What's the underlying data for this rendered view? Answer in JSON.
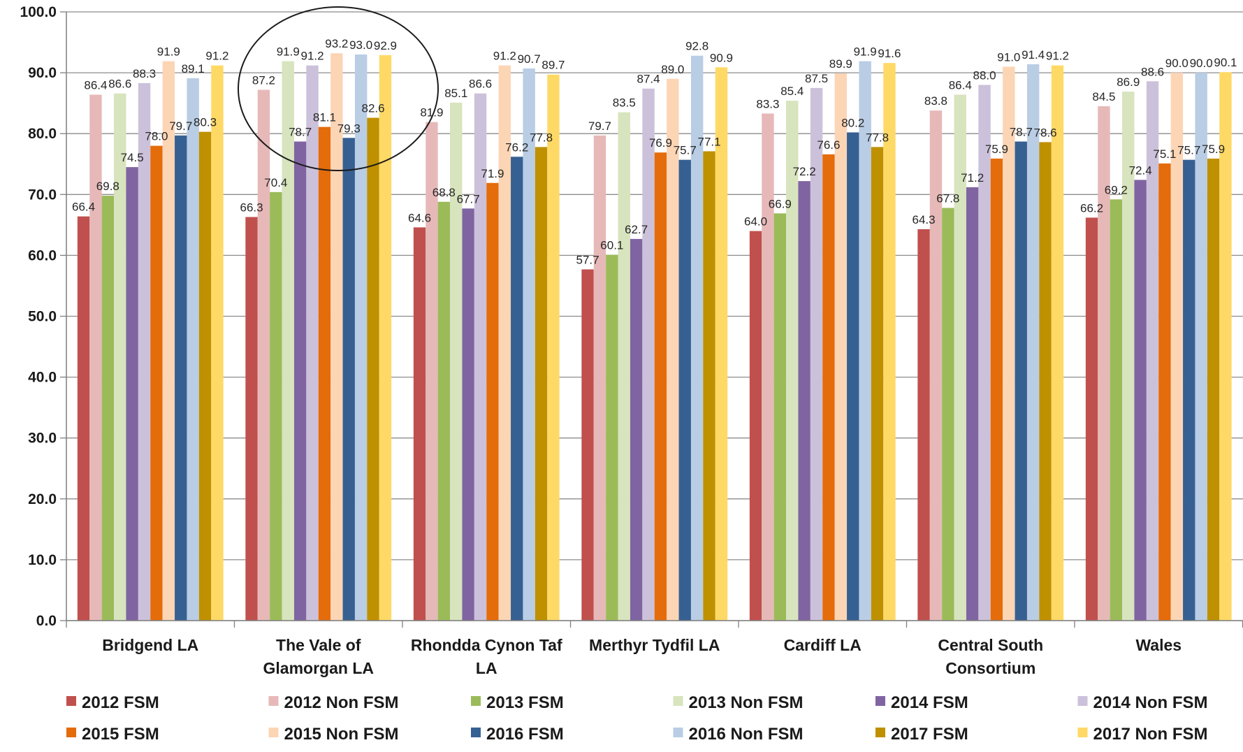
{
  "chart_data": {
    "type": "bar",
    "title": "",
    "xlabel": "",
    "ylabel": "",
    "ylim": [
      0,
      100
    ],
    "yticks": [
      "0.0",
      "10.0",
      "20.0",
      "30.0",
      "40.0",
      "50.0",
      "60.0",
      "70.0",
      "80.0",
      "90.0",
      "100.0"
    ],
    "grid": true,
    "legend_position": "bottom",
    "categories": [
      [
        "Bridgend LA"
      ],
      [
        "The Vale of",
        "Glamorgan LA"
      ],
      [
        "Rhondda Cynon Taf",
        "LA"
      ],
      [
        "Merthyr Tydfil LA"
      ],
      [
        "Cardiff LA"
      ],
      [
        "Central South",
        "Consortium"
      ],
      [
        "Wales"
      ]
    ],
    "series": [
      {
        "name": "2012 FSM",
        "color": "#C0504D",
        "values": [
          66.4,
          66.3,
          64.6,
          57.7,
          64.0,
          64.3,
          66.2
        ]
      },
      {
        "name": "2012 Non FSM",
        "color": "#E6B9B8",
        "values": [
          86.4,
          87.2,
          81.9,
          79.7,
          83.3,
          83.8,
          84.5
        ]
      },
      {
        "name": "2013 FSM",
        "color": "#9BBB59",
        "values": [
          69.8,
          70.4,
          68.8,
          60.1,
          66.9,
          67.8,
          69.2
        ]
      },
      {
        "name": "2013 Non FSM",
        "color": "#D7E4BD",
        "values": [
          86.6,
          91.9,
          85.1,
          83.5,
          85.4,
          86.4,
          86.9
        ]
      },
      {
        "name": "2014 FSM",
        "color": "#8064A2",
        "values": [
          74.5,
          78.7,
          67.7,
          62.7,
          72.2,
          71.2,
          72.4
        ]
      },
      {
        "name": "2014 Non FSM",
        "color": "#CCC1DA",
        "values": [
          88.3,
          91.2,
          86.6,
          87.4,
          87.5,
          88.0,
          88.6
        ]
      },
      {
        "name": "2015 FSM",
        "color": "#E46C0A",
        "values": [
          78.0,
          81.1,
          71.9,
          76.9,
          76.6,
          75.9,
          75.1
        ]
      },
      {
        "name": "2015 Non FSM",
        "color": "#FCD5B5",
        "values": [
          91.9,
          93.2,
          91.2,
          89.0,
          89.9,
          91.0,
          90.0
        ]
      },
      {
        "name": "2016 FSM",
        "color": "#366092",
        "values": [
          79.7,
          79.3,
          76.2,
          75.7,
          80.2,
          78.7,
          75.7
        ]
      },
      {
        "name": "2016 Non FSM",
        "color": "#B9CDE5",
        "values": [
          89.1,
          93.0,
          90.7,
          92.8,
          91.9,
          91.4,
          90.0
        ]
      },
      {
        "name": "2017 FSM",
        "color": "#BF9000",
        "values": [
          80.3,
          82.6,
          77.8,
          77.1,
          77.8,
          78.6,
          75.9
        ]
      },
      {
        "name": "2017 Non FSM",
        "color": "#FFD966",
        "values": [
          91.2,
          92.9,
          89.7,
          90.9,
          91.6,
          91.2,
          90.1
        ]
      }
    ],
    "annotation": "ellipse highlighting The Vale of Glamorgan LA group"
  }
}
